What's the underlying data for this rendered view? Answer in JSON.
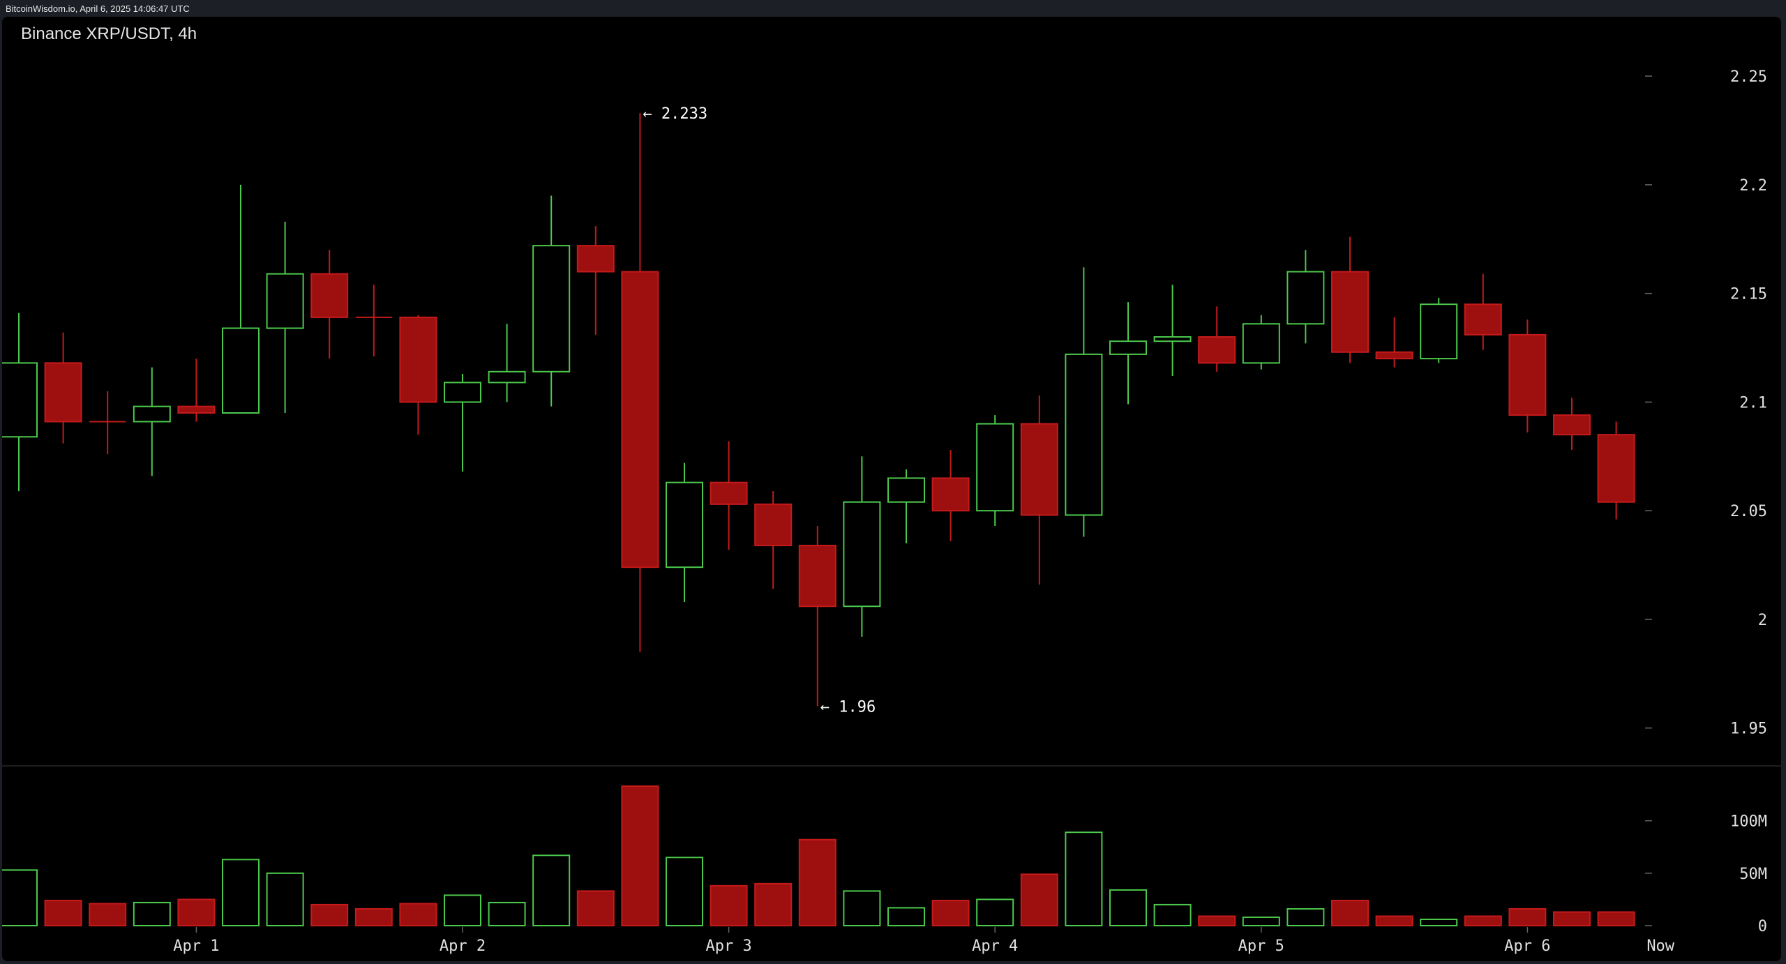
{
  "header": {
    "source_label": "BitcoinWisdom.io, April 6, 2025 14:06:47 UTC"
  },
  "colors": {
    "background": "#000000",
    "frame": "#1c1f26",
    "up": "#4cc94c",
    "down": "#c41a1a",
    "down_fill": "#9e1010",
    "axis_text": "#e0e0e0"
  },
  "chart_data": {
    "type": "candlestick",
    "title": "Binance XRP/USDT, 4h",
    "interval": "4h",
    "price_axis": {
      "ylim": [
        1.93,
        2.26
      ],
      "ticks": [
        2.25,
        2.2,
        2.15,
        2.1,
        2.05,
        2,
        1.95
      ],
      "tick_labels": [
        "2.25",
        "2.2",
        "2.15",
        "2.1",
        "2.05",
        "2",
        "1.95"
      ]
    },
    "volume_axis": {
      "ylim": [
        0,
        145
      ],
      "unit": "M",
      "ticks": [
        100,
        50,
        0
      ],
      "tick_labels": [
        "100M",
        "50M",
        "0"
      ]
    },
    "time_axis": {
      "labels": [
        "Apr 1",
        "Apr 2",
        "Apr 3",
        "Apr 4",
        "Apr 5",
        "Apr 6",
        "Now"
      ],
      "label_at_index": [
        4,
        10,
        16,
        22,
        28,
        34,
        37
      ]
    },
    "annotations": [
      {
        "text": "← 2.233",
        "index": 14,
        "price": 2.233
      },
      {
        "text": "← 1.96",
        "index": 18,
        "price": 1.96
      }
    ],
    "candles": [
      {
        "o": 2.084,
        "h": 2.141,
        "l": 2.059,
        "c": 2.118,
        "v": 53
      },
      {
        "o": 2.118,
        "h": 2.132,
        "l": 2.081,
        "c": 2.091,
        "v": 24
      },
      {
        "o": 2.091,
        "h": 2.105,
        "l": 2.076,
        "c": 2.091,
        "v": 21
      },
      {
        "o": 2.091,
        "h": 2.116,
        "l": 2.066,
        "c": 2.098,
        "v": 22
      },
      {
        "o": 2.098,
        "h": 2.12,
        "l": 2.091,
        "c": 2.095,
        "v": 25
      },
      {
        "o": 2.095,
        "h": 2.2,
        "l": 2.095,
        "c": 2.134,
        "v": 63
      },
      {
        "o": 2.134,
        "h": 2.183,
        "l": 2.095,
        "c": 2.159,
        "v": 50
      },
      {
        "o": 2.159,
        "h": 2.17,
        "l": 2.12,
        "c": 2.139,
        "v": 20
      },
      {
        "o": 2.139,
        "h": 2.154,
        "l": 2.121,
        "c": 2.139,
        "v": 16
      },
      {
        "o": 2.139,
        "h": 2.14,
        "l": 2.085,
        "c": 2.1,
        "v": 21
      },
      {
        "o": 2.1,
        "h": 2.113,
        "l": 2.068,
        "c": 2.109,
        "v": 29
      },
      {
        "o": 2.109,
        "h": 2.136,
        "l": 2.1,
        "c": 2.114,
        "v": 22
      },
      {
        "o": 2.114,
        "h": 2.195,
        "l": 2.098,
        "c": 2.172,
        "v": 67
      },
      {
        "o": 2.172,
        "h": 2.181,
        "l": 2.131,
        "c": 2.16,
        "v": 33
      },
      {
        "o": 2.16,
        "h": 2.233,
        "l": 1.985,
        "c": 2.024,
        "v": 133
      },
      {
        "o": 2.024,
        "h": 2.072,
        "l": 2.008,
        "c": 2.063,
        "v": 65
      },
      {
        "o": 2.063,
        "h": 2.082,
        "l": 2.032,
        "c": 2.053,
        "v": 38
      },
      {
        "o": 2.053,
        "h": 2.059,
        "l": 2.014,
        "c": 2.034,
        "v": 40
      },
      {
        "o": 2.034,
        "h": 2.043,
        "l": 1.96,
        "c": 2.006,
        "v": 82
      },
      {
        "o": 2.006,
        "h": 2.075,
        "l": 1.992,
        "c": 2.054,
        "v": 33
      },
      {
        "o": 2.054,
        "h": 2.069,
        "l": 2.035,
        "c": 2.065,
        "v": 17
      },
      {
        "o": 2.065,
        "h": 2.078,
        "l": 2.036,
        "c": 2.05,
        "v": 24
      },
      {
        "o": 2.05,
        "h": 2.094,
        "l": 2.043,
        "c": 2.09,
        "v": 25
      },
      {
        "o": 2.09,
        "h": 2.103,
        "l": 2.016,
        "c": 2.048,
        "v": 49
      },
      {
        "o": 2.048,
        "h": 2.162,
        "l": 2.038,
        "c": 2.122,
        "v": 89
      },
      {
        "o": 2.122,
        "h": 2.146,
        "l": 2.099,
        "c": 2.128,
        "v": 34
      },
      {
        "o": 2.128,
        "h": 2.154,
        "l": 2.112,
        "c": 2.13,
        "v": 20
      },
      {
        "o": 2.13,
        "h": 2.144,
        "l": 2.114,
        "c": 2.118,
        "v": 9
      },
      {
        "o": 2.118,
        "h": 2.14,
        "l": 2.115,
        "c": 2.136,
        "v": 8
      },
      {
        "o": 2.136,
        "h": 2.17,
        "l": 2.127,
        "c": 2.16,
        "v": 16
      },
      {
        "o": 2.16,
        "h": 2.176,
        "l": 2.118,
        "c": 2.123,
        "v": 24
      },
      {
        "o": 2.123,
        "h": 2.139,
        "l": 2.116,
        "c": 2.12,
        "v": 9
      },
      {
        "o": 2.12,
        "h": 2.148,
        "l": 2.118,
        "c": 2.145,
        "v": 6
      },
      {
        "o": 2.145,
        "h": 2.159,
        "l": 2.124,
        "c": 2.131,
        "v": 9
      },
      {
        "o": 2.131,
        "h": 2.138,
        "l": 2.086,
        "c": 2.094,
        "v": 16
      },
      {
        "o": 2.094,
        "h": 2.102,
        "l": 2.078,
        "c": 2.085,
        "v": 13
      },
      {
        "o": 2.085,
        "h": 2.091,
        "l": 2.046,
        "c": 2.054,
        "v": 13
      }
    ]
  }
}
